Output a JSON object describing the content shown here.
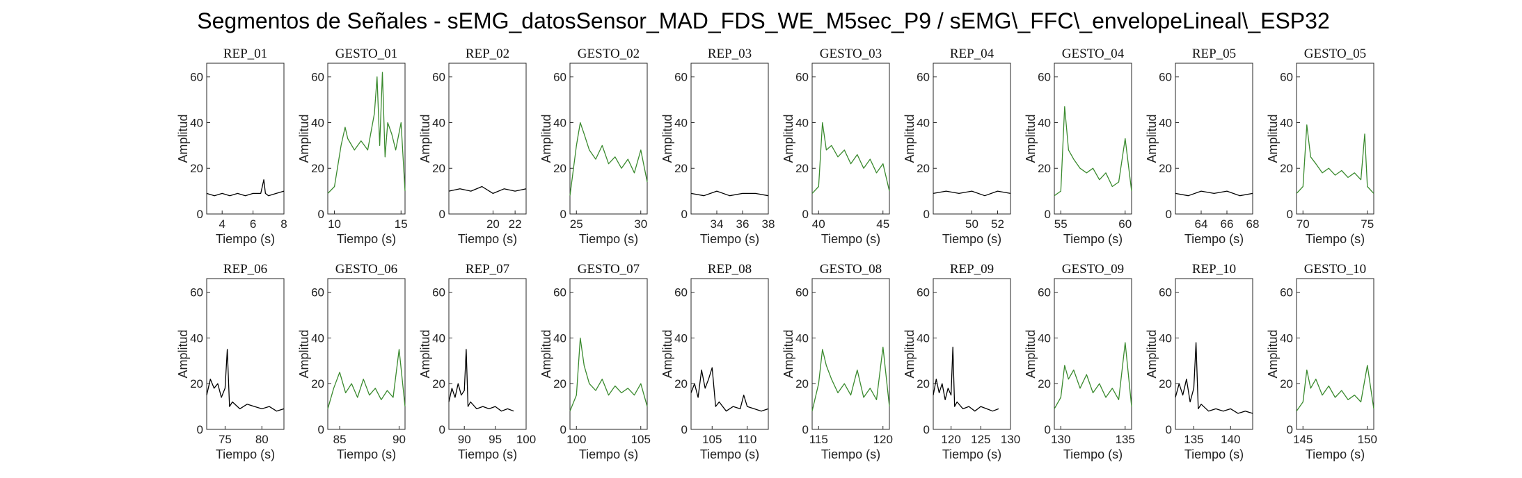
{
  "title": "Segmentos de Señales - sEMG_datosSensor_MAD_FDS_WE_M5sec_P9 / sEMG\\_FFC\\_envelopeLineal\\_ESP32",
  "colors": {
    "rep": "#000000",
    "gesto": "#3a8a2e"
  },
  "chart_data": [
    {
      "type": "line",
      "title": "REP_01",
      "kind": "rep",
      "xlabel": "Tiempo (s)",
      "ylabel": "Amplitud",
      "xlim": [
        3,
        8
      ],
      "ylim": [
        0,
        66
      ],
      "xticks": [
        4,
        6,
        8
      ],
      "yticks": [
        0,
        20,
        40,
        60
      ],
      "series": [
        {
          "x": [
            3.0,
            3.5,
            4.0,
            4.5,
            5.0,
            5.5,
            6.0,
            6.5,
            6.7,
            6.8,
            7.0,
            7.5,
            8.0
          ],
          "values": [
            9,
            8,
            9,
            8,
            9,
            8,
            9,
            9,
            15,
            9,
            8,
            9,
            10
          ]
        }
      ]
    },
    {
      "type": "line",
      "title": "GESTO_01",
      "kind": "gesto",
      "xlabel": "Tiempo (s)",
      "ylabel": "Amplitud",
      "xlim": [
        9.5,
        15.3
      ],
      "ylim": [
        0,
        66
      ],
      "xticks": [
        10,
        15
      ],
      "yticks": [
        0,
        20,
        40,
        60
      ],
      "series": [
        {
          "x": [
            9.5,
            10.0,
            10.5,
            10.8,
            11.0,
            11.5,
            12.0,
            12.5,
            13.0,
            13.2,
            13.4,
            13.6,
            13.8,
            14.0,
            14.3,
            14.6,
            15.0,
            15.3
          ],
          "values": [
            9,
            12,
            30,
            38,
            33,
            28,
            32,
            28,
            44,
            60,
            30,
            62,
            25,
            40,
            35,
            28,
            40,
            10
          ]
        }
      ]
    },
    {
      "type": "line",
      "title": "REP_02",
      "kind": "rep",
      "xlabel": "Tiempo (s)",
      "ylabel": "Amplitud",
      "xlim": [
        16,
        23
      ],
      "ylim": [
        0,
        66
      ],
      "xticks": [
        20,
        22
      ],
      "yticks": [
        0,
        20,
        40,
        60
      ],
      "series": [
        {
          "x": [
            16,
            17,
            18,
            19,
            20,
            21,
            22,
            23
          ],
          "values": [
            10,
            11,
            10,
            12,
            9,
            11,
            10,
            11
          ]
        }
      ]
    },
    {
      "type": "line",
      "title": "GESTO_02",
      "kind": "gesto",
      "xlabel": "Tiempo (s)",
      "ylabel": "Amplitud",
      "xlim": [
        24.5,
        30.5
      ],
      "ylim": [
        0,
        66
      ],
      "xticks": [
        25,
        30
      ],
      "yticks": [
        0,
        20,
        40,
        60
      ],
      "series": [
        {
          "x": [
            24.5,
            25.0,
            25.3,
            25.6,
            26.0,
            26.5,
            27.0,
            27.5,
            28.0,
            28.5,
            29.0,
            29.5,
            30.0,
            30.5
          ],
          "values": [
            8,
            30,
            40,
            35,
            28,
            24,
            30,
            22,
            25,
            20,
            24,
            18,
            28,
            14
          ]
        }
      ]
    },
    {
      "type": "line",
      "title": "REP_03",
      "kind": "rep",
      "xlabel": "Tiempo (s)",
      "ylabel": "Amplitud",
      "xlim": [
        32,
        38
      ],
      "ylim": [
        0,
        66
      ],
      "xticks": [
        34,
        36,
        38
      ],
      "yticks": [
        0,
        20,
        40,
        60
      ],
      "series": [
        {
          "x": [
            32,
            33,
            34,
            35,
            36,
            37,
            38
          ],
          "values": [
            9,
            8,
            10,
            8,
            9,
            9,
            8
          ]
        }
      ]
    },
    {
      "type": "line",
      "title": "GESTO_03",
      "kind": "gesto",
      "xlabel": "Tiempo (s)",
      "ylabel": "Amplitud",
      "xlim": [
        39.5,
        45.5
      ],
      "ylim": [
        0,
        66
      ],
      "xticks": [
        40,
        45
      ],
      "yticks": [
        0,
        20,
        40,
        60
      ],
      "series": [
        {
          "x": [
            39.5,
            40.0,
            40.3,
            40.6,
            41.0,
            41.5,
            42.0,
            42.5,
            43.0,
            43.5,
            44.0,
            44.5,
            45.0,
            45.5
          ],
          "values": [
            9,
            12,
            40,
            28,
            30,
            25,
            28,
            22,
            26,
            20,
            24,
            18,
            22,
            10
          ]
        }
      ]
    },
    {
      "type": "line",
      "title": "REP_04",
      "kind": "rep",
      "xlabel": "Tiempo (s)",
      "ylabel": "Amplitud",
      "xlim": [
        47,
        53
      ],
      "ylim": [
        0,
        66
      ],
      "xticks": [
        50,
        52
      ],
      "yticks": [
        0,
        20,
        40,
        60
      ],
      "series": [
        {
          "x": [
            47,
            48,
            49,
            50,
            51,
            52,
            53
          ],
          "values": [
            9,
            10,
            9,
            10,
            8,
            10,
            9
          ]
        }
      ]
    },
    {
      "type": "line",
      "title": "GESTO_04",
      "kind": "gesto",
      "xlabel": "Tiempo (s)",
      "ylabel": "Amplitud",
      "xlim": [
        54.5,
        60.5
      ],
      "ylim": [
        0,
        66
      ],
      "xticks": [
        55,
        60
      ],
      "yticks": [
        0,
        20,
        40,
        60
      ],
      "series": [
        {
          "x": [
            54.5,
            55.0,
            55.3,
            55.6,
            56.0,
            56.5,
            57.0,
            57.5,
            58.0,
            58.5,
            59.0,
            59.5,
            60.0,
            60.5
          ],
          "values": [
            8,
            10,
            47,
            28,
            24,
            20,
            18,
            20,
            15,
            18,
            12,
            14,
            33,
            10
          ]
        }
      ]
    },
    {
      "type": "line",
      "title": "REP_05",
      "kind": "rep",
      "xlabel": "Tiempo (s)",
      "ylabel": "Amplitud",
      "xlim": [
        62,
        68
      ],
      "ylim": [
        0,
        66
      ],
      "xticks": [
        64,
        66,
        68
      ],
      "yticks": [
        0,
        20,
        40,
        60
      ],
      "series": [
        {
          "x": [
            62,
            63,
            64,
            65,
            66,
            67,
            68
          ],
          "values": [
            9,
            8,
            10,
            9,
            10,
            8,
            9
          ]
        }
      ]
    },
    {
      "type": "line",
      "title": "GESTO_05",
      "kind": "gesto",
      "xlabel": "Tiempo (s)",
      "ylabel": "Amplitud",
      "xlim": [
        69.5,
        75.5
      ],
      "ylim": [
        0,
        66
      ],
      "xticks": [
        70,
        75
      ],
      "yticks": [
        0,
        20,
        40,
        60
      ],
      "series": [
        {
          "x": [
            69.5,
            70.0,
            70.3,
            70.6,
            71.0,
            71.5,
            72.0,
            72.5,
            73.0,
            73.5,
            74.0,
            74.5,
            74.8,
            75.0,
            75.5
          ],
          "values": [
            9,
            12,
            39,
            25,
            22,
            18,
            20,
            17,
            19,
            16,
            18,
            15,
            35,
            12,
            9
          ]
        }
      ]
    },
    {
      "type": "line",
      "title": "REP_06",
      "kind": "rep",
      "xlabel": "Tiempo (s)",
      "ylabel": "Amplitud",
      "xlim": [
        72.5,
        83
      ],
      "ylim": [
        0,
        66
      ],
      "xticks": [
        75,
        80
      ],
      "yticks": [
        0,
        20,
        40,
        60
      ],
      "series": [
        {
          "x": [
            72.5,
            73.0,
            73.5,
            74.0,
            74.5,
            75.0,
            75.3,
            75.6,
            76.0,
            77.0,
            78.0,
            79.0,
            80.0,
            81.0,
            82.0,
            83.0
          ],
          "values": [
            15,
            22,
            18,
            20,
            14,
            18,
            35,
            10,
            12,
            9,
            11,
            10,
            9,
            10,
            8,
            9
          ]
        }
      ]
    },
    {
      "type": "line",
      "title": "GESTO_06",
      "kind": "gesto",
      "xlabel": "Tiempo (s)",
      "ylabel": "Amplitud",
      "xlim": [
        84,
        90.5
      ],
      "ylim": [
        0,
        66
      ],
      "xticks": [
        85,
        90
      ],
      "yticks": [
        0,
        20,
        40,
        60
      ],
      "series": [
        {
          "x": [
            84.0,
            84.5,
            85.0,
            85.5,
            86.0,
            86.5,
            87.0,
            87.5,
            88.0,
            88.5,
            89.0,
            89.5,
            90.0,
            90.5
          ],
          "values": [
            9,
            18,
            25,
            16,
            20,
            14,
            22,
            15,
            18,
            13,
            17,
            14,
            35,
            10
          ]
        }
      ]
    },
    {
      "type": "line",
      "title": "REP_07",
      "kind": "rep",
      "xlabel": "Tiempo (s)",
      "ylabel": "Amplitud",
      "xlim": [
        87.5,
        100
      ],
      "ylim": [
        0,
        66
      ],
      "xticks": [
        90,
        95,
        100
      ],
      "yticks": [
        0,
        20,
        40,
        60
      ],
      "series": [
        {
          "x": [
            87.5,
            88.0,
            88.5,
            89.0,
            89.5,
            90.0,
            90.3,
            90.6,
            91.0,
            92.0,
            93.0,
            94.0,
            95.0,
            96.0,
            97.0,
            98.0
          ],
          "values": [
            12,
            18,
            14,
            20,
            15,
            17,
            35,
            10,
            12,
            9,
            10,
            9,
            10,
            8,
            9,
            8
          ]
        }
      ]
    },
    {
      "type": "line",
      "title": "GESTO_07",
      "kind": "gesto",
      "xlabel": "Tiempo (s)",
      "ylabel": "Amplitud",
      "xlim": [
        99.5,
        105.5
      ],
      "ylim": [
        0,
        66
      ],
      "xticks": [
        100,
        105
      ],
      "yticks": [
        0,
        20,
        40,
        60
      ],
      "series": [
        {
          "x": [
            99.5,
            100.0,
            100.3,
            100.6,
            101.0,
            101.5,
            102.0,
            102.5,
            103.0,
            103.5,
            104.0,
            104.5,
            105.0,
            105.5
          ],
          "values": [
            8,
            15,
            40,
            28,
            20,
            17,
            22,
            15,
            19,
            16,
            18,
            15,
            20,
            10
          ]
        }
      ]
    },
    {
      "type": "line",
      "title": "REP_08",
      "kind": "rep",
      "xlabel": "Tiempo (s)",
      "ylabel": "Amplitud",
      "xlim": [
        102,
        113
      ],
      "ylim": [
        0,
        66
      ],
      "xticks": [
        105,
        110
      ],
      "yticks": [
        0,
        20,
        40,
        60
      ],
      "series": [
        {
          "x": [
            102.0,
            102.5,
            103.0,
            103.5,
            104.0,
            104.5,
            105.0,
            105.5,
            106.0,
            107.0,
            108.0,
            109.0,
            109.5,
            110.0,
            111.0,
            112.0,
            113.0
          ],
          "values": [
            16,
            20,
            14,
            26,
            18,
            22,
            27,
            10,
            12,
            8,
            10,
            9,
            15,
            10,
            9,
            8,
            9
          ]
        }
      ]
    },
    {
      "type": "line",
      "title": "GESTO_08",
      "kind": "gesto",
      "xlabel": "Tiempo (s)",
      "ylabel": "Amplitud",
      "xlim": [
        114.5,
        120.5
      ],
      "ylim": [
        0,
        66
      ],
      "xticks": [
        115,
        120
      ],
      "yticks": [
        0,
        20,
        40,
        60
      ],
      "series": [
        {
          "x": [
            114.5,
            115.0,
            115.3,
            115.6,
            116.0,
            116.5,
            117.0,
            117.5,
            118.0,
            118.5,
            119.0,
            119.5,
            120.0,
            120.5
          ],
          "values": [
            8,
            20,
            35,
            28,
            22,
            16,
            20,
            15,
            26,
            14,
            18,
            13,
            36,
            10
          ]
        }
      ]
    },
    {
      "type": "line",
      "title": "REP_09",
      "kind": "rep",
      "xlabel": "Tiempo (s)",
      "ylabel": "Amplitud",
      "xlim": [
        117,
        130
      ],
      "ylim": [
        0,
        66
      ],
      "xticks": [
        120,
        125,
        130
      ],
      "yticks": [
        0,
        20,
        40,
        60
      ],
      "series": [
        {
          "x": [
            117.0,
            117.5,
            118.0,
            118.5,
            119.0,
            119.5,
            120.0,
            120.3,
            120.6,
            121.0,
            122.0,
            123.0,
            124.0,
            125.0,
            126.0,
            127.0,
            128.0
          ],
          "values": [
            15,
            22,
            16,
            20,
            13,
            18,
            15,
            36,
            10,
            12,
            9,
            10,
            8,
            10,
            9,
            8,
            9
          ]
        }
      ]
    },
    {
      "type": "line",
      "title": "GESTO_09",
      "kind": "gesto",
      "xlabel": "Tiempo (s)",
      "ylabel": "Amplitud",
      "xlim": [
        129.5,
        135.5
      ],
      "ylim": [
        0,
        66
      ],
      "xticks": [
        130,
        135
      ],
      "yticks": [
        0,
        20,
        40,
        60
      ],
      "series": [
        {
          "x": [
            129.5,
            130.0,
            130.3,
            130.6,
            131.0,
            131.5,
            132.0,
            132.5,
            133.0,
            133.5,
            134.0,
            134.5,
            135.0,
            135.5
          ],
          "values": [
            9,
            14,
            28,
            22,
            26,
            18,
            24,
            16,
            20,
            14,
            18,
            13,
            38,
            10
          ]
        }
      ]
    },
    {
      "type": "line",
      "title": "REP_10",
      "kind": "rep",
      "xlabel": "Tiempo (s)",
      "ylabel": "Amplitud",
      "xlim": [
        132.5,
        143
      ],
      "ylim": [
        0,
        66
      ],
      "xticks": [
        135,
        140
      ],
      "yticks": [
        0,
        20,
        40,
        60
      ],
      "series": [
        {
          "x": [
            132.5,
            133.0,
            133.5,
            134.0,
            134.5,
            135.0,
            135.3,
            135.6,
            136.0,
            137.0,
            138.0,
            139.0,
            140.0,
            141.0,
            142.0,
            143.0
          ],
          "values": [
            14,
            20,
            15,
            22,
            12,
            18,
            38,
            9,
            11,
            8,
            9,
            8,
            9,
            7,
            8,
            7
          ]
        }
      ]
    },
    {
      "type": "line",
      "title": "GESTO_10",
      "kind": "gesto",
      "xlabel": "Tiempo (s)",
      "ylabel": "Amplitud",
      "xlim": [
        144.5,
        150.5
      ],
      "ylim": [
        0,
        66
      ],
      "xticks": [
        145,
        150
      ],
      "yticks": [
        0,
        20,
        40,
        60
      ],
      "series": [
        {
          "x": [
            144.5,
            145.0,
            145.3,
            145.6,
            146.0,
            146.5,
            147.0,
            147.5,
            148.0,
            148.5,
            149.0,
            149.5,
            150.0,
            150.5
          ],
          "values": [
            8,
            12,
            26,
            18,
            22,
            15,
            19,
            14,
            17,
            13,
            15,
            12,
            28,
            9
          ]
        }
      ]
    }
  ]
}
